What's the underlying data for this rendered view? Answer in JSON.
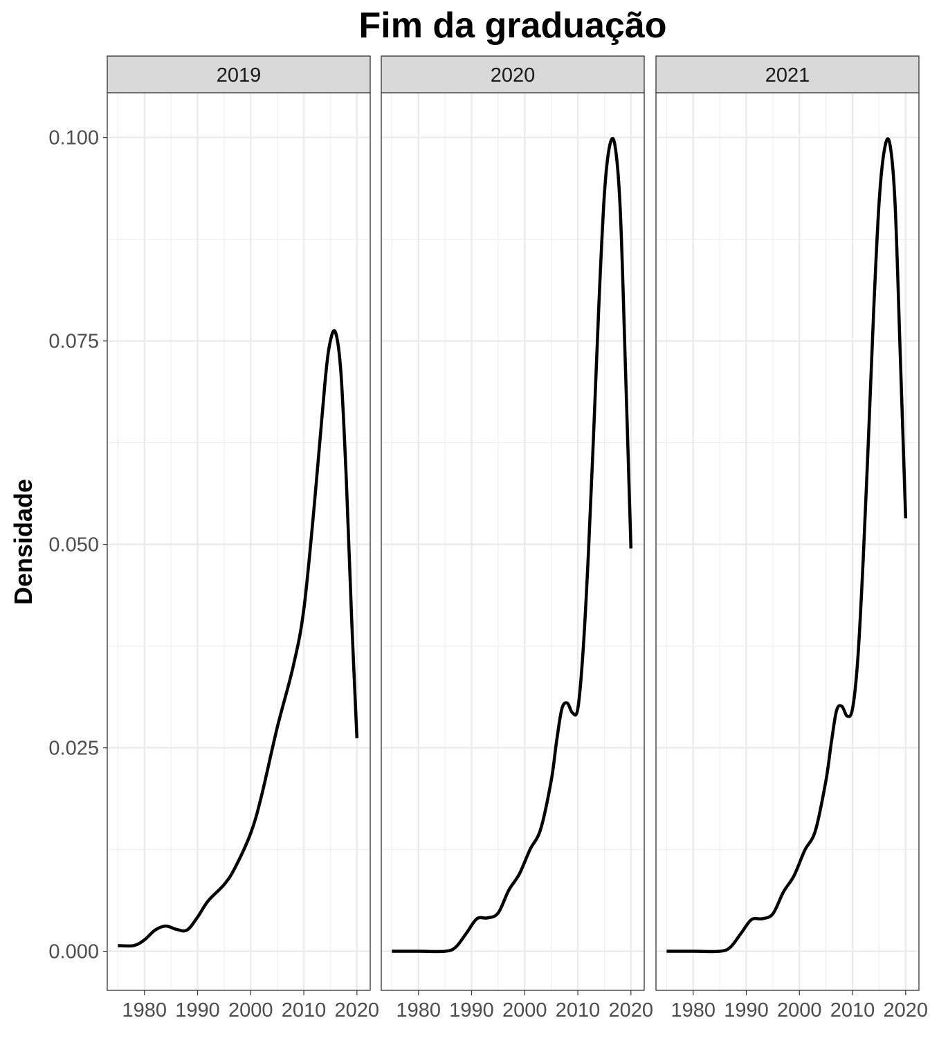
{
  "chart_data": {
    "type": "line",
    "title": "Fim da graduação",
    "xlabel": "",
    "ylabel": "Densidade",
    "xlim": [
      1973,
      2022.5
    ],
    "ylim": [
      -0.0048,
      0.1055
    ],
    "x_ticks": [
      1980,
      1990,
      2000,
      2010,
      2020
    ],
    "x_tick_labels": [
      "1980",
      "1990",
      "2000",
      "2010",
      "2020"
    ],
    "y_ticks": [
      0.0,
      0.025,
      0.05,
      0.075,
      0.1
    ],
    "y_tick_labels": [
      "0.000",
      "0.025",
      "0.050",
      "0.075",
      "0.100"
    ],
    "grid": true,
    "line_color": "#000000",
    "panels": [
      {
        "label": "2019",
        "x": [
          1975,
          1978,
          1980,
          1982,
          1984,
          1986,
          1988,
          1990,
          1992,
          1995,
          1997,
          2000,
          2002,
          2005,
          2008,
          2010,
          2012,
          2014,
          2015,
          2016,
          2017,
          2018,
          2019,
          2020
        ],
        "y": [
          0.0007,
          0.0007,
          0.0014,
          0.0026,
          0.0031,
          0.0027,
          0.0026,
          0.0042,
          0.0062,
          0.0082,
          0.0102,
          0.0145,
          0.019,
          0.0275,
          0.035,
          0.042,
          0.055,
          0.07,
          0.075,
          0.076,
          0.071,
          0.058,
          0.041,
          0.0262
        ]
      },
      {
        "label": "2020",
        "x": [
          1975,
          1980,
          1985,
          1987,
          1989,
          1991,
          1993,
          1995,
          1997,
          1999,
          2001,
          2003,
          2005,
          2006,
          2007,
          2008,
          2009,
          2010,
          2011,
          2012,
          2013,
          2014,
          2015,
          2016,
          2017,
          2018,
          2019,
          2020
        ],
        "y": [
          0.0,
          0.0,
          0.0,
          0.0005,
          0.0022,
          0.004,
          0.0041,
          0.0047,
          0.0075,
          0.0095,
          0.0125,
          0.015,
          0.021,
          0.0258,
          0.0298,
          0.0305,
          0.0293,
          0.0298,
          0.037,
          0.049,
          0.064,
          0.08,
          0.093,
          0.099,
          0.099,
          0.091,
          0.071,
          0.0495
        ]
      },
      {
        "label": "2021",
        "x": [
          1975,
          1980,
          1985,
          1987,
          1989,
          1991,
          1993,
          1995,
          1997,
          1999,
          2001,
          2003,
          2005,
          2006,
          2007,
          2008,
          2009,
          2010,
          2011,
          2012,
          2013,
          2014,
          2015,
          2016,
          2017,
          2018,
          2019,
          2020
        ],
        "y": [
          0.0,
          0.0,
          0.0,
          0.0005,
          0.0022,
          0.0039,
          0.004,
          0.0046,
          0.0073,
          0.0093,
          0.0124,
          0.0148,
          0.021,
          0.0256,
          0.0296,
          0.0301,
          0.0289,
          0.0298,
          0.036,
          0.048,
          0.063,
          0.079,
          0.092,
          0.0985,
          0.0993,
          0.092,
          0.073,
          0.0532
        ]
      }
    ]
  }
}
